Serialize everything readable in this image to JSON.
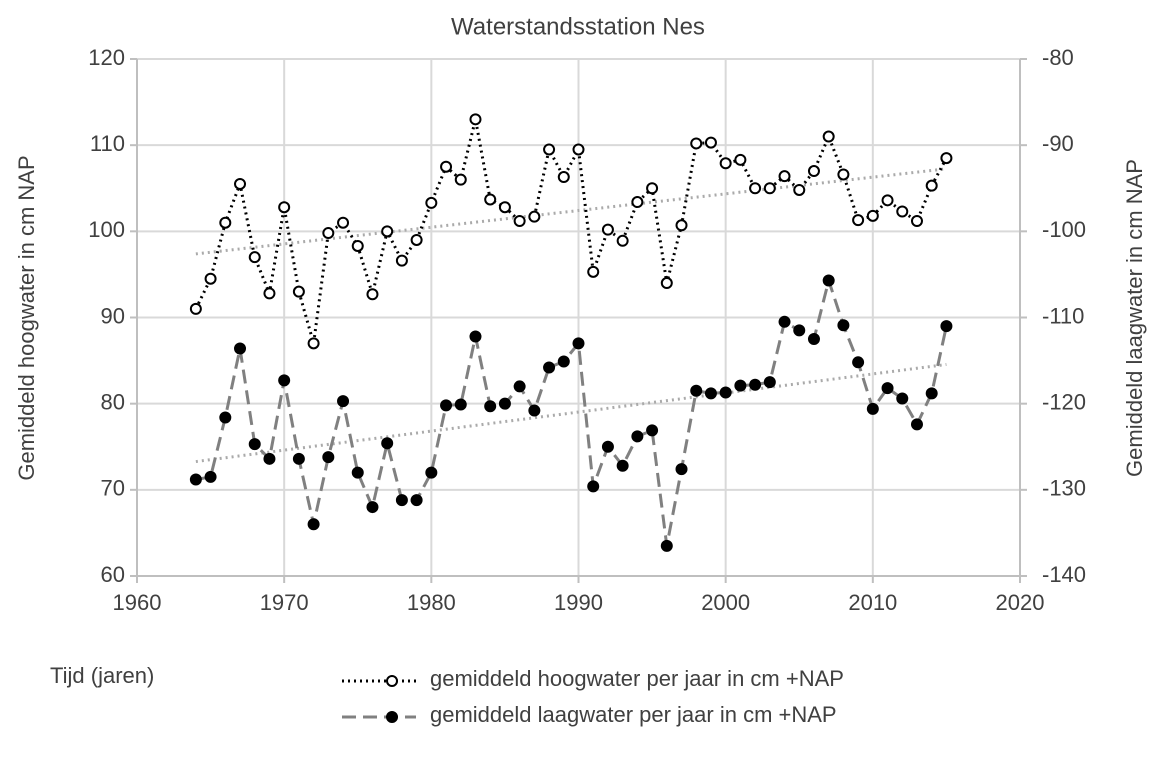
{
  "chart_data": {
    "type": "line",
    "title": "Waterstandsstation Nes",
    "x_label": "Tijd (jaren)",
    "y_label": "Gemiddeld hoogwater in cm NAP",
    "y2_label": "Gemiddeld laagwater in cm NAP",
    "x": [
      1964,
      1965,
      1966,
      1967,
      1968,
      1969,
      1970,
      1971,
      1972,
      1973,
      1974,
      1975,
      1976,
      1977,
      1978,
      1979,
      1980,
      1981,
      1982,
      1983,
      1984,
      1985,
      1986,
      1987,
      1988,
      1989,
      1990,
      1991,
      1992,
      1993,
      1994,
      1995,
      1996,
      1997,
      1998,
      1999,
      2000,
      2001,
      2002,
      2003,
      2004,
      2005,
      2006,
      2007,
      2008,
      2009,
      2010,
      2011,
      2012,
      2013,
      2014,
      2015
    ],
    "series": [
      {
        "name": "gemiddeld hoogwater per jaar in cm +NAP",
        "color": "#000000",
        "marker_color": "#000000",
        "dash": "dotted",
        "marker": "open",
        "trendline": true,
        "values": [
          91,
          94.5,
          101,
          105.5,
          97,
          92.8,
          102.8,
          93,
          87,
          99.8,
          101,
          98.3,
          92.7,
          100,
          96.6,
          99,
          103.3,
          107.5,
          106,
          113,
          103.7,
          102.8,
          101.2,
          101.7,
          109.5,
          106.3,
          109.5,
          95.3,
          100.2,
          98.9,
          103.4,
          105,
          94,
          100.7,
          110.2,
          110.3,
          107.9,
          108.3,
          105,
          105,
          106.4,
          104.8,
          107,
          111,
          106.6,
          101.3,
          101.8,
          103.6,
          102.3,
          101.2,
          105.3,
          108.5
        ]
      },
      {
        "name": "gemiddeld laagwater per jaar in cm +NAP",
        "color": "#808080",
        "marker_color": "#000000",
        "dash": "dashed",
        "marker": "filled",
        "axis": "y2",
        "trendline": true,
        "values": [
          -128.8,
          -128.5,
          -121.6,
          -113.6,
          -124.7,
          -126.4,
          -117.3,
          -126.4,
          -134,
          -126.2,
          -119.7,
          -128,
          -132,
          -124.6,
          -131.2,
          -131.2,
          -128,
          -120.2,
          -120.1,
          -112.2,
          -120.3,
          -120,
          -118,
          -120.8,
          -115.8,
          -115.1,
          -113,
          -129.6,
          -125,
          -127.2,
          -123.8,
          -123.1,
          -136.5,
          -127.6,
          -118.5,
          -118.8,
          -118.7,
          -117.9,
          -117.8,
          -117.5,
          -110.5,
          -111.5,
          -112.5,
          -105.7,
          -110.9,
          -115.2,
          -120.6,
          -118.2,
          -119.4,
          -122.4,
          -118.8,
          -111
        ]
      }
    ],
    "xlim": [
      1960,
      2020
    ],
    "xticks": [
      1960,
      1970,
      1980,
      1990,
      2000,
      2010,
      2020
    ],
    "ylim": [
      60,
      120
    ],
    "yticks": [
      60,
      70,
      80,
      90,
      100,
      110,
      120
    ],
    "y2lim": [
      -140,
      -80
    ],
    "y2ticks": [
      -140,
      -130,
      -120,
      -110,
      -100,
      -90,
      -80
    ],
    "grid": true,
    "trendline_color": "#aaaaaa"
  }
}
